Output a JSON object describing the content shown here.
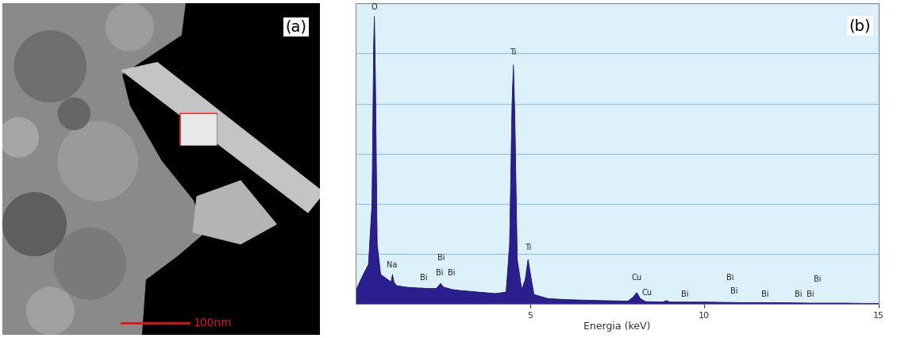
{
  "image": {
    "label": "(a)",
    "scale_bar_label": "100nm"
  },
  "chart_data": {
    "type": "area",
    "label": "(b)",
    "x_label": "Energia (keV)",
    "x": [
      0.0,
      0.2,
      0.35,
      0.45,
      0.5,
      0.52,
      0.55,
      0.6,
      0.7,
      0.9,
      1.0,
      1.04,
      1.08,
      1.15,
      1.4,
      1.8,
      1.9,
      2.0,
      2.3,
      2.42,
      2.5,
      2.6,
      2.75,
      3.0,
      3.5,
      4.0,
      4.3,
      4.4,
      4.47,
      4.51,
      4.55,
      4.62,
      4.75,
      4.85,
      4.93,
      5.0,
      5.1,
      5.5,
      6.0,
      7.0,
      7.8,
      7.95,
      8.05,
      8.15,
      8.3,
      8.8,
      8.9,
      9.0,
      10.0,
      11.0,
      12.0,
      13.0,
      14.0,
      15.0
    ],
    "values": [
      0.3,
      0.6,
      0.8,
      2.0,
      5.2,
      5.75,
      4.5,
      1.2,
      0.6,
      0.5,
      0.45,
      0.6,
      0.45,
      0.38,
      0.35,
      0.33,
      0.33,
      0.32,
      0.32,
      0.42,
      0.35,
      0.33,
      0.3,
      0.28,
      0.25,
      0.22,
      0.25,
      1.2,
      4.0,
      4.78,
      3.8,
      0.9,
      0.3,
      0.5,
      0.9,
      0.6,
      0.2,
      0.12,
      0.1,
      0.08,
      0.07,
      0.15,
      0.24,
      0.12,
      0.06,
      0.05,
      0.08,
      0.05,
      0.05,
      0.04,
      0.04,
      0.03,
      0.03,
      0.02
    ],
    "color": "#2b1f8f",
    "xlim": [
      0,
      15
    ],
    "xticks": [
      5,
      10,
      15
    ],
    "ylim": [
      0,
      6
    ],
    "yticks": [
      0,
      1,
      2,
      3,
      4,
      5,
      6
    ],
    "grid": true,
    "tick_labels": "x",
    "annotations": [
      {
        "text": "O",
        "x": 0.52,
        "y": 5.85
      },
      {
        "text": "Na",
        "x": 1.04,
        "y": 0.7
      },
      {
        "text": "Bi",
        "x": 1.95,
        "y": 0.45
      },
      {
        "text": "Bi",
        "x": 2.45,
        "y": 0.85
      },
      {
        "text": "Bi",
        "x": 2.4,
        "y": 0.55
      },
      {
        "text": "Bi",
        "x": 2.75,
        "y": 0.55
      },
      {
        "text": "Ti",
        "x": 4.51,
        "y": 4.95
      },
      {
        "text": "Ti",
        "x": 4.95,
        "y": 1.05
      },
      {
        "text": "Cu",
        "x": 8.05,
        "y": 0.45
      },
      {
        "text": "Cu",
        "x": 8.35,
        "y": 0.15
      },
      {
        "text": "Bi",
        "x": 9.45,
        "y": 0.12
      },
      {
        "text": "Bi",
        "x": 10.75,
        "y": 0.45
      },
      {
        "text": "Bi",
        "x": 10.85,
        "y": 0.18
      },
      {
        "text": "Bi",
        "x": 11.75,
        "y": 0.12
      },
      {
        "text": "Bi",
        "x": 12.7,
        "y": 0.12
      },
      {
        "text": "Bi",
        "x": 13.05,
        "y": 0.12
      },
      {
        "text": "Bi",
        "x": 13.25,
        "y": 0.42
      }
    ]
  }
}
